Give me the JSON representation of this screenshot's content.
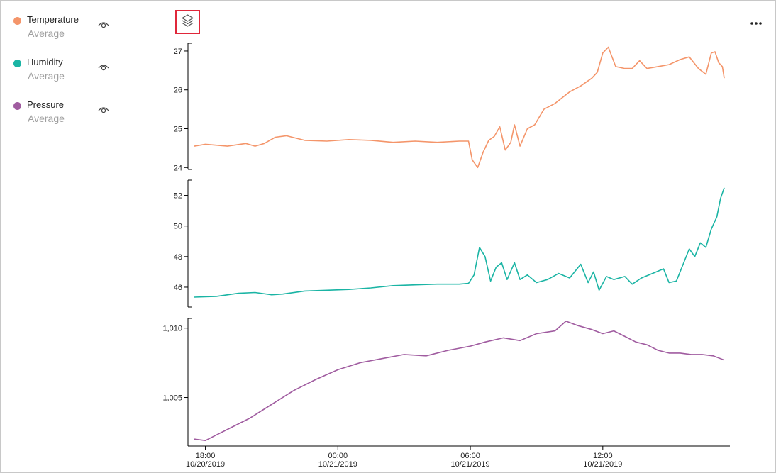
{
  "legend": {
    "items": [
      {
        "name": "Temperature",
        "aggregate": "Average",
        "color": "#f4956a",
        "icon": "eye-icon"
      },
      {
        "name": "Humidity",
        "aggregate": "Average",
        "color": "#1ab4a4",
        "icon": "eye-icon"
      },
      {
        "name": "Pressure",
        "aggregate": "Average",
        "color": "#a05ca0",
        "icon": "eye-icon"
      }
    ]
  },
  "toolbar": {
    "layers_icon": "layers-icon",
    "more_icon": "more-options-icon",
    "highlight_color": "#e0273a"
  },
  "chart_data": {
    "type": "line",
    "x_type": "datetime",
    "x_ticks": [
      {
        "time": "18:00",
        "date": "10/20/2019"
      },
      {
        "time": "00:00",
        "date": "10/21/2019"
      },
      {
        "time": "06:00",
        "date": "10/21/2019"
      },
      {
        "time": "12:00",
        "date": "10/21/2019"
      }
    ],
    "x_range": [
      "2019-10-20T17:30",
      "2019-10-21T17:30"
    ],
    "series": [
      {
        "name": "Temperature",
        "color": "#f4956a",
        "ylim": [
          23.95,
          27.2
        ],
        "y_ticks": [
          "24",
          "25",
          "26",
          "27"
        ],
        "y_tick_values": [
          24,
          25,
          26,
          27
        ],
        "points": [
          [
            "2019-10-20T17:30",
            24.55
          ],
          [
            "2019-10-20T18:00",
            24.6
          ],
          [
            "2019-10-20T19:00",
            24.55
          ],
          [
            "2019-10-20T19:50",
            24.62
          ],
          [
            "2019-10-20T20:15",
            24.55
          ],
          [
            "2019-10-20T20:40",
            24.62
          ],
          [
            "2019-10-20T21:10",
            24.78
          ],
          [
            "2019-10-20T21:40",
            24.82
          ],
          [
            "2019-10-20T22:30",
            24.7
          ],
          [
            "2019-10-20T23:30",
            24.68
          ],
          [
            "2019-10-21T00:30",
            24.72
          ],
          [
            "2019-10-21T01:30",
            24.7
          ],
          [
            "2019-10-21T02:30",
            24.65
          ],
          [
            "2019-10-21T03:30",
            24.68
          ],
          [
            "2019-10-21T04:30",
            24.65
          ],
          [
            "2019-10-21T05:30",
            24.68
          ],
          [
            "2019-10-21T05:55",
            24.68
          ],
          [
            "2019-10-21T06:05",
            24.2
          ],
          [
            "2019-10-21T06:20",
            24.0
          ],
          [
            "2019-10-21T06:35",
            24.4
          ],
          [
            "2019-10-21T06:50",
            24.7
          ],
          [
            "2019-10-21T07:05",
            24.8
          ],
          [
            "2019-10-21T07:20",
            25.05
          ],
          [
            "2019-10-21T07:35",
            24.45
          ],
          [
            "2019-10-21T07:50",
            24.65
          ],
          [
            "2019-10-21T08:00",
            25.1
          ],
          [
            "2019-10-21T08:15",
            24.55
          ],
          [
            "2019-10-21T08:35",
            25.0
          ],
          [
            "2019-10-21T08:55",
            25.1
          ],
          [
            "2019-10-21T09:20",
            25.5
          ],
          [
            "2019-10-21T09:50",
            25.65
          ],
          [
            "2019-10-21T10:30",
            25.95
          ],
          [
            "2019-10-21T11:00",
            26.1
          ],
          [
            "2019-10-21T11:30",
            26.3
          ],
          [
            "2019-10-21T11:45",
            26.45
          ],
          [
            "2019-10-21T12:00",
            26.95
          ],
          [
            "2019-10-21T12:15",
            27.1
          ],
          [
            "2019-10-21T12:35",
            26.6
          ],
          [
            "2019-10-21T13:00",
            26.55
          ],
          [
            "2019-10-21T13:20",
            26.55
          ],
          [
            "2019-10-21T13:40",
            26.75
          ],
          [
            "2019-10-21T14:00",
            26.55
          ],
          [
            "2019-10-21T14:30",
            26.6
          ],
          [
            "2019-10-21T15:00",
            26.65
          ],
          [
            "2019-10-21T15:30",
            26.78
          ],
          [
            "2019-10-21T15:55",
            26.85
          ],
          [
            "2019-10-21T16:20",
            26.55
          ],
          [
            "2019-10-21T16:40",
            26.4
          ],
          [
            "2019-10-21T16:55",
            26.95
          ],
          [
            "2019-10-21T17:05",
            26.98
          ],
          [
            "2019-10-21T17:15",
            26.7
          ],
          [
            "2019-10-21T17:25",
            26.6
          ],
          [
            "2019-10-21T17:30",
            26.3
          ]
        ]
      },
      {
        "name": "Humidity",
        "color": "#1ab4a4",
        "ylim": [
          44.7,
          53.0
        ],
        "y_ticks": [
          "46",
          "48",
          "50",
          "52"
        ],
        "y_tick_values": [
          46,
          48,
          50,
          52
        ],
        "points": [
          [
            "2019-10-20T17:30",
            45.35
          ],
          [
            "2019-10-20T18:30",
            45.4
          ],
          [
            "2019-10-20T19:30",
            45.6
          ],
          [
            "2019-10-20T20:15",
            45.65
          ],
          [
            "2019-10-20T21:00",
            45.5
          ],
          [
            "2019-10-20T21:30",
            45.55
          ],
          [
            "2019-10-20T22:30",
            45.75
          ],
          [
            "2019-10-20T23:30",
            45.8
          ],
          [
            "2019-10-21T00:30",
            45.85
          ],
          [
            "2019-10-21T01:30",
            45.95
          ],
          [
            "2019-10-21T02:30",
            46.1
          ],
          [
            "2019-10-21T03:30",
            46.15
          ],
          [
            "2019-10-21T04:30",
            46.2
          ],
          [
            "2019-10-21T05:30",
            46.2
          ],
          [
            "2019-10-21T05:55",
            46.25
          ],
          [
            "2019-10-21T06:10",
            46.8
          ],
          [
            "2019-10-21T06:25",
            48.6
          ],
          [
            "2019-10-21T06:40",
            48.0
          ],
          [
            "2019-10-21T06:55",
            46.4
          ],
          [
            "2019-10-21T07:10",
            47.3
          ],
          [
            "2019-10-21T07:25",
            47.6
          ],
          [
            "2019-10-21T07:40",
            46.5
          ],
          [
            "2019-10-21T08:00",
            47.6
          ],
          [
            "2019-10-21T08:15",
            46.5
          ],
          [
            "2019-10-21T08:35",
            46.8
          ],
          [
            "2019-10-21T09:00",
            46.3
          ],
          [
            "2019-10-21T09:30",
            46.5
          ],
          [
            "2019-10-21T10:00",
            46.9
          ],
          [
            "2019-10-21T10:30",
            46.6
          ],
          [
            "2019-10-21T11:00",
            47.5
          ],
          [
            "2019-10-21T11:20",
            46.3
          ],
          [
            "2019-10-21T11:35",
            47.0
          ],
          [
            "2019-10-21T11:50",
            45.8
          ],
          [
            "2019-10-21T12:10",
            46.7
          ],
          [
            "2019-10-21T12:30",
            46.5
          ],
          [
            "2019-10-21T13:00",
            46.7
          ],
          [
            "2019-10-21T13:20",
            46.2
          ],
          [
            "2019-10-21T13:45",
            46.6
          ],
          [
            "2019-10-21T14:15",
            46.9
          ],
          [
            "2019-10-21T14:45",
            47.2
          ],
          [
            "2019-10-21T15:00",
            46.3
          ],
          [
            "2019-10-21T15:20",
            46.4
          ],
          [
            "2019-10-21T15:40",
            47.6
          ],
          [
            "2019-10-21T15:55",
            48.5
          ],
          [
            "2019-10-21T16:10",
            48.0
          ],
          [
            "2019-10-21T16:25",
            48.9
          ],
          [
            "2019-10-21T16:40",
            48.6
          ],
          [
            "2019-10-21T16:55",
            49.8
          ],
          [
            "2019-10-21T17:10",
            50.6
          ],
          [
            "2019-10-21T17:20",
            51.8
          ],
          [
            "2019-10-21T17:30",
            52.5
          ]
        ]
      },
      {
        "name": "Pressure",
        "color": "#a05ca0",
        "ylim": [
          1001.5,
          1010.7
        ],
        "y_ticks": [
          "1,005",
          "1,010"
        ],
        "y_tick_values": [
          1005,
          1010
        ],
        "points": [
          [
            "2019-10-20T17:30",
            1002.0
          ],
          [
            "2019-10-20T18:00",
            1001.9
          ],
          [
            "2019-10-20T18:30",
            1002.3
          ],
          [
            "2019-10-20T19:00",
            1002.7
          ],
          [
            "2019-10-20T20:00",
            1003.5
          ],
          [
            "2019-10-20T21:00",
            1004.5
          ],
          [
            "2019-10-20T22:00",
            1005.5
          ],
          [
            "2019-10-20T23:00",
            1006.3
          ],
          [
            "2019-10-21T00:00",
            1007.0
          ],
          [
            "2019-10-21T01:00",
            1007.5
          ],
          [
            "2019-10-21T02:00",
            1007.8
          ],
          [
            "2019-10-21T03:00",
            1008.1
          ],
          [
            "2019-10-21T04:00",
            1008.0
          ],
          [
            "2019-10-21T05:00",
            1008.4
          ],
          [
            "2019-10-21T06:00",
            1008.7
          ],
          [
            "2019-10-21T06:40",
            1009.0
          ],
          [
            "2019-10-21T07:30",
            1009.3
          ],
          [
            "2019-10-21T08:15",
            1009.1
          ],
          [
            "2019-10-21T09:00",
            1009.6
          ],
          [
            "2019-10-21T09:50",
            1009.8
          ],
          [
            "2019-10-21T10:20",
            1010.5
          ],
          [
            "2019-10-21T10:50",
            1010.2
          ],
          [
            "2019-10-21T11:30",
            1009.9
          ],
          [
            "2019-10-21T12:00",
            1009.6
          ],
          [
            "2019-10-21T12:30",
            1009.8
          ],
          [
            "2019-10-21T13:00",
            1009.4
          ],
          [
            "2019-10-21T13:30",
            1009.0
          ],
          [
            "2019-10-21T14:00",
            1008.8
          ],
          [
            "2019-10-21T14:30",
            1008.4
          ],
          [
            "2019-10-21T15:00",
            1008.2
          ],
          [
            "2019-10-21T15:30",
            1008.2
          ],
          [
            "2019-10-21T16:00",
            1008.1
          ],
          [
            "2019-10-21T16:30",
            1008.1
          ],
          [
            "2019-10-21T17:00",
            1008.0
          ],
          [
            "2019-10-21T17:30",
            1007.7
          ]
        ]
      }
    ]
  }
}
